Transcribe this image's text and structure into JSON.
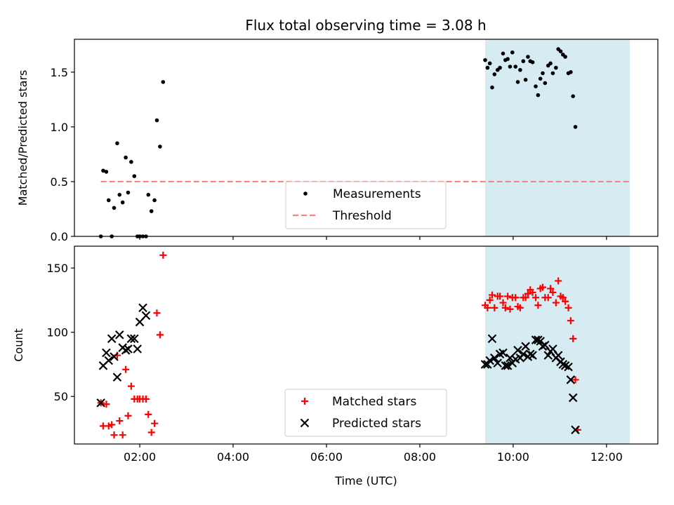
{
  "chart_data": [
    {
      "type": "scatter",
      "title": "Flux total observing time = 3.08 h",
      "xlabel": "",
      "ylabel": "Matched/Predicted stars",
      "xlim": [
        "00:36",
        "13:06"
      ],
      "ylim": [
        0,
        1.8
      ],
      "xticks": [
        "02:00",
        "04:00",
        "06:00",
        "08:00",
        "10:00",
        "12:00"
      ],
      "xtick_labels_visible": false,
      "yticks": [
        0.0,
        0.5,
        1.0,
        1.5
      ],
      "ytick_labels": [
        "0.0",
        "0.5",
        "1.0",
        "1.5"
      ],
      "shaded_span": {
        "x": [
          "09:24",
          "12:30"
        ],
        "color": "#add8e6"
      },
      "legend": {
        "placement": "bottom-center",
        "entries": [
          "Measurements",
          "Threshold"
        ]
      },
      "series": [
        {
          "name": "Measurements",
          "style": "dot",
          "color": "#000000",
          "points": [
            [
              "01:10",
              0.0
            ],
            [
              "01:13",
              0.6
            ],
            [
              "01:17",
              0.59
            ],
            [
              "01:20",
              0.33
            ],
            [
              "01:24",
              0.0
            ],
            [
              "01:27",
              0.26
            ],
            [
              "01:31",
              0.85
            ],
            [
              "01:34",
              0.38
            ],
            [
              "01:38",
              0.31
            ],
            [
              "01:42",
              0.72
            ],
            [
              "01:45",
              0.4
            ],
            [
              "01:49",
              0.68
            ],
            [
              "01:53",
              0.55
            ],
            [
              "01:57",
              0.0
            ],
            [
              "02:00",
              0.0
            ],
            [
              "02:04",
              0.0
            ],
            [
              "02:08",
              0.0
            ],
            [
              "02:11",
              0.38
            ],
            [
              "02:15",
              0.23
            ],
            [
              "02:19",
              0.33
            ],
            [
              "02:22",
              1.06
            ],
            [
              "02:26",
              0.82
            ],
            [
              "02:30",
              1.41
            ],
            [
              "09:24",
              1.61
            ],
            [
              "09:27",
              1.54
            ],
            [
              "09:30",
              1.58
            ],
            [
              "09:33",
              1.36
            ],
            [
              "09:36",
              1.48
            ],
            [
              "09:40",
              1.52
            ],
            [
              "09:43",
              1.54
            ],
            [
              "09:47",
              1.67
            ],
            [
              "09:50",
              1.61
            ],
            [
              "09:53",
              1.62
            ],
            [
              "09:56",
              1.55
            ],
            [
              "09:59",
              1.68
            ],
            [
              "10:03",
              1.55
            ],
            [
              "10:06",
              1.41
            ],
            [
              "10:09",
              1.52
            ],
            [
              "10:13",
              1.6
            ],
            [
              "10:16",
              1.43
            ],
            [
              "10:19",
              1.64
            ],
            [
              "10:22",
              1.6
            ],
            [
              "10:25",
              1.59
            ],
            [
              "10:29",
              1.37
            ],
            [
              "10:32",
              1.29
            ],
            [
              "10:35",
              1.44
            ],
            [
              "10:38",
              1.49
            ],
            [
              "10:41",
              1.4
            ],
            [
              "10:45",
              1.56
            ],
            [
              "10:48",
              1.58
            ],
            [
              "10:51",
              1.49
            ],
            [
              "10:55",
              1.54
            ],
            [
              "10:58",
              1.71
            ],
            [
              "11:01",
              1.69
            ],
            [
              "11:04",
              1.66
            ],
            [
              "11:07",
              1.64
            ],
            [
              "11:11",
              1.49
            ],
            [
              "11:14",
              1.5
            ],
            [
              "11:17",
              1.28
            ],
            [
              "11:20",
              1.0
            ]
          ]
        },
        {
          "name": "Threshold",
          "style": "dashed",
          "color": "#ff7f7f",
          "points": [
            [
              "01:10",
              0.5
            ],
            [
              "12:30",
              0.5
            ]
          ]
        }
      ]
    },
    {
      "type": "scatter",
      "title": "",
      "xlabel": "Time (UTC)",
      "ylabel": "Count",
      "xlim": [
        "00:36",
        "13:06"
      ],
      "ylim": [
        13,
        167
      ],
      "xticks": [
        "02:00",
        "04:00",
        "06:00",
        "08:00",
        "10:00",
        "12:00"
      ],
      "xtick_labels": [
        "02:00",
        "04:00",
        "06:00",
        "08:00",
        "10:00",
        "12:00"
      ],
      "yticks": [
        50,
        100,
        150
      ],
      "ytick_labels": [
        "50",
        "100",
        "150"
      ],
      "shaded_span": {
        "x": [
          "09:24",
          "12:30"
        ],
        "color": "#add8e6"
      },
      "legend": {
        "placement": "bottom-center",
        "entries": [
          "Matched stars",
          "Predicted stars"
        ]
      },
      "series": [
        {
          "name": "Matched stars",
          "style": "plus",
          "color": "#ff0000",
          "points": [
            [
              "01:10",
              45
            ],
            [
              "01:13",
              27
            ],
            [
              "01:17",
              44
            ],
            [
              "01:20",
              27
            ],
            [
              "01:24",
              28
            ],
            [
              "01:27",
              20
            ],
            [
              "01:31",
              82
            ],
            [
              "01:34",
              31
            ],
            [
              "01:38",
              20
            ],
            [
              "01:42",
              71
            ],
            [
              "01:45",
              35
            ],
            [
              "01:49",
              58
            ],
            [
              "01:53",
              48
            ],
            [
              "01:57",
              48
            ],
            [
              "02:00",
              48
            ],
            [
              "02:04",
              48
            ],
            [
              "02:08",
              48
            ],
            [
              "02:11",
              36
            ],
            [
              "02:15",
              22
            ],
            [
              "02:19",
              29
            ],
            [
              "02:22",
              115
            ],
            [
              "02:26",
              98
            ],
            [
              "02:30",
              160
            ],
            [
              "09:24",
              121
            ],
            [
              "09:27",
              119
            ],
            [
              "09:30",
              125
            ],
            [
              "09:33",
              129
            ],
            [
              "09:36",
              119
            ],
            [
              "09:40",
              128
            ],
            [
              "09:43",
              128
            ],
            [
              "09:47",
              123
            ],
            [
              "09:50",
              119
            ],
            [
              "09:53",
              128
            ],
            [
              "09:56",
              118
            ],
            [
              "09:59",
              127
            ],
            [
              "10:03",
              127
            ],
            [
              "10:06",
              120
            ],
            [
              "10:09",
              119
            ],
            [
              "10:13",
              127
            ],
            [
              "10:16",
              127
            ],
            [
              "10:19",
              130
            ],
            [
              "10:22",
              133
            ],
            [
              "10:25",
              131
            ],
            [
              "10:29",
              127
            ],
            [
              "10:32",
              121
            ],
            [
              "10:35",
              134
            ],
            [
              "10:38",
              135
            ],
            [
              "10:41",
              127
            ],
            [
              "10:45",
              127
            ],
            [
              "10:48",
              134
            ],
            [
              "10:51",
              131
            ],
            [
              "10:55",
              123
            ],
            [
              "10:58",
              140
            ],
            [
              "11:01",
              128
            ],
            [
              "11:04",
              127
            ],
            [
              "11:07",
              124
            ],
            [
              "11:11",
              119
            ],
            [
              "11:14",
              109
            ],
            [
              "11:17",
              95
            ],
            [
              "11:20",
              63
            ],
            [
              "11:23",
              24
            ]
          ]
        },
        {
          "name": "Predicted stars",
          "style": "x",
          "color": "#000000",
          "points": [
            [
              "01:10",
              45
            ],
            [
              "01:13",
              74
            ],
            [
              "01:17",
              84
            ],
            [
              "01:20",
              78
            ],
            [
              "01:24",
              95
            ],
            [
              "01:27",
              81
            ],
            [
              "01:31",
              65
            ],
            [
              "01:34",
              98
            ],
            [
              "01:38",
              88
            ],
            [
              "01:42",
              86
            ],
            [
              "01:45",
              87
            ],
            [
              "01:49",
              95
            ],
            [
              "01:53",
              95
            ],
            [
              "01:57",
              87
            ],
            [
              "02:00",
              108
            ],
            [
              "02:04",
              119
            ],
            [
              "02:08",
              113
            ],
            [
              "09:24",
              75
            ],
            [
              "09:27",
              75
            ],
            [
              "09:30",
              78
            ],
            [
              "09:33",
              95
            ],
            [
              "09:36",
              80
            ],
            [
              "09:40",
              76
            ],
            [
              "09:43",
              83
            ],
            [
              "09:47",
              84
            ],
            [
              "09:50",
              74
            ],
            [
              "09:53",
              74
            ],
            [
              "09:56",
              80
            ],
            [
              "09:59",
              76
            ],
            [
              "10:03",
              79
            ],
            [
              "10:06",
              86
            ],
            [
              "10:09",
              80
            ],
            [
              "10:13",
              83
            ],
            [
              "10:16",
              89
            ],
            [
              "10:19",
              81
            ],
            [
              "10:22",
              83
            ],
            [
              "10:25",
              82
            ],
            [
              "10:29",
              94
            ],
            [
              "10:32",
              94
            ],
            [
              "10:35",
              93
            ],
            [
              "10:38",
              89
            ],
            [
              "10:41",
              90
            ],
            [
              "10:45",
              82
            ],
            [
              "10:48",
              85
            ],
            [
              "10:51",
              87
            ],
            [
              "10:55",
              80
            ],
            [
              "10:58",
              82
            ],
            [
              "11:01",
              77
            ],
            [
              "11:04",
              75
            ],
            [
              "11:07",
              74
            ],
            [
              "11:11",
              73
            ],
            [
              "11:14",
              63
            ],
            [
              "11:17",
              49
            ],
            [
              "11:20",
              24
            ]
          ]
        }
      ]
    }
  ]
}
